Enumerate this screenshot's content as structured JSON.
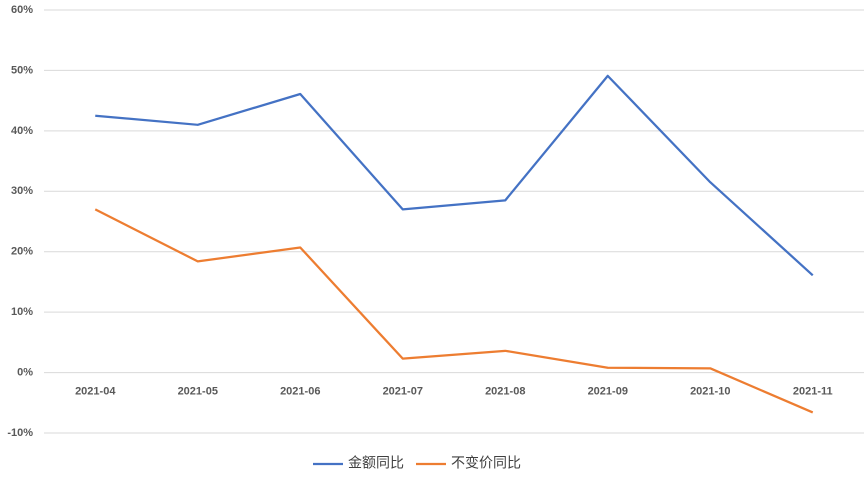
{
  "chart_data": {
    "type": "line",
    "categories": [
      "2021-04",
      "2021-05",
      "2021-06",
      "2021-07",
      "2021-08",
      "2021-09",
      "2021-10",
      "2021-11"
    ],
    "series": [
      {
        "name": "金额同比",
        "color": "#4472c4",
        "values": [
          42.5,
          41.0,
          46.1,
          27.0,
          28.5,
          49.1,
          31.5,
          16.1
        ]
      },
      {
        "name": "不变价同比",
        "color": "#ed7d31",
        "values": [
          27.0,
          18.4,
          20.7,
          2.3,
          3.6,
          0.8,
          0.7,
          -6.6
        ]
      }
    ],
    "ylim": [
      -10,
      60
    ],
    "yticks": [
      {
        "value": -10,
        "label": "-10%"
      },
      {
        "value": 0,
        "label": "0%"
      },
      {
        "value": 10,
        "label": "10%"
      },
      {
        "value": 20,
        "label": "20%"
      },
      {
        "value": 30,
        "label": "30%"
      },
      {
        "value": 40,
        "label": "40%"
      },
      {
        "value": 50,
        "label": "50%"
      },
      {
        "value": 60,
        "label": "60%"
      }
    ],
    "grid": true,
    "legend": "bottom"
  }
}
